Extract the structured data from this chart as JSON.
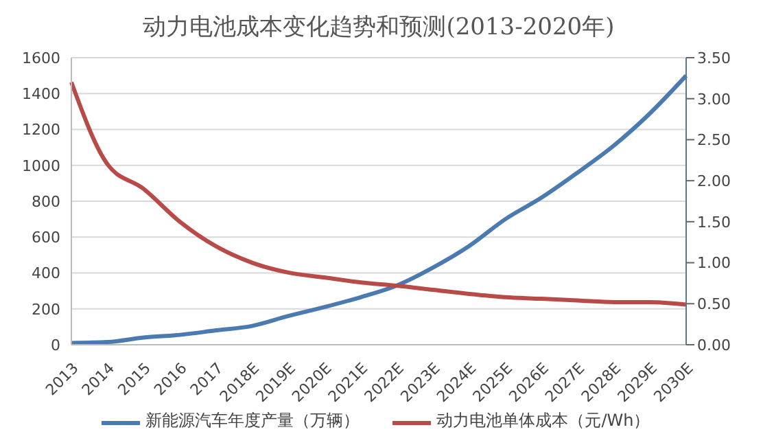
{
  "chart_data": {
    "type": "line",
    "title": "动力电池成本变化趋势和预测(2013-2020年)",
    "categories": [
      "2013",
      "2014",
      "2015",
      "2016",
      "2017",
      "2018E",
      "2019E",
      "2020E",
      "2021E",
      "2022E",
      "2023E",
      "2024E",
      "2025E",
      "2026E",
      "2027E",
      "2028E",
      "2029E",
      "2030E"
    ],
    "series": [
      {
        "name": "新能源汽车年度产量（万辆）",
        "color": "#4a7ab0",
        "values": [
          10,
          15,
          40,
          55,
          80,
          105,
          160,
          210,
          265,
          330,
          430,
          550,
          700,
          820,
          960,
          1110,
          1290,
          1500
        ]
      },
      {
        "name": "动力电池单体成本（元/Wh）",
        "color": "#b84a48",
        "axis": "y2",
        "values": [
          3.2,
          2.2,
          1.9,
          1.5,
          1.2,
          1.0,
          0.88,
          0.82,
          0.76,
          0.72,
          0.67,
          0.62,
          0.58,
          0.56,
          0.54,
          0.52,
          0.52,
          0.49
        ]
      }
    ],
    "ylim": [
      0,
      1600
    ],
    "yticks": [
      0,
      200,
      400,
      600,
      800,
      1000,
      1200,
      1400,
      1600
    ],
    "y2lim": [
      0,
      3.5
    ],
    "y2ticks": [
      {
        "value": 0,
        "label": "0.00"
      },
      {
        "value": 0.5,
        "label": "0.50"
      },
      {
        "value": 1,
        "label": "1.00"
      },
      {
        "value": 1.5,
        "label": "1.50"
      },
      {
        "value": 2,
        "label": "2.00"
      },
      {
        "value": 2.5,
        "label": "2.50"
      },
      {
        "value": 3,
        "label": "3.00"
      },
      {
        "value": 3.5,
        "label": "3.50"
      }
    ],
    "grid": "y",
    "legend": "bottom",
    "marker": "none",
    "line_style": "solid"
  }
}
